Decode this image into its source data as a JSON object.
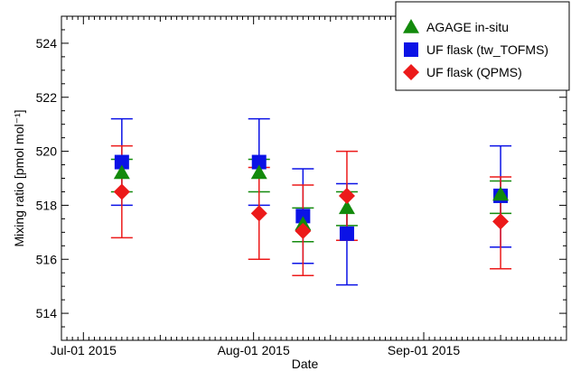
{
  "chart_data": {
    "type": "scatter",
    "xlabel": "Date",
    "ylabel": "Mixing ratio [pmol mol⁻¹]",
    "ylim": [
      513,
      525
    ],
    "xlim": [
      "2015-06-27",
      "2015-09-27"
    ],
    "x_major_ticks": [
      "2015-07-01",
      "2015-08-01",
      "2015-09-01"
    ],
    "x_tick_labels": [
      "Jul-01 2015",
      "Aug-01 2015",
      "Sep-01 2015"
    ],
    "y_ticks": [
      514,
      516,
      518,
      520,
      522,
      524
    ],
    "y_tick_labels": [
      "514",
      "516",
      "518",
      "520",
      "522",
      "524"
    ],
    "grid": false,
    "legend_position": "top-right",
    "series": [
      {
        "name": "AGAGE in-situ",
        "marker": "triangle",
        "color": "#138a0c",
        "points": [
          {
            "x": "2015-07-08",
            "y": 519.2,
            "ylo": 518.5,
            "yhi": 519.7
          },
          {
            "x": "2015-08-02",
            "y": 519.2,
            "ylo": 518.5,
            "yhi": 519.7
          },
          {
            "x": "2015-08-10",
            "y": 517.3,
            "ylo": 516.65,
            "yhi": 517.9
          },
          {
            "x": "2015-08-18",
            "y": 517.9,
            "ylo": 517.25,
            "yhi": 518.5
          },
          {
            "x": "2015-09-15",
            "y": 518.4,
            "ylo": 517.7,
            "yhi": 518.9
          }
        ]
      },
      {
        "name": "UF flask (tw_TOFMS)",
        "marker": "square",
        "color": "#0b12e6",
        "points": [
          {
            "x": "2015-07-08",
            "y": 519.6,
            "ylo": 518.0,
            "yhi": 521.2
          },
          {
            "x": "2015-08-02",
            "y": 519.6,
            "ylo": 518.0,
            "yhi": 521.2
          },
          {
            "x": "2015-08-10",
            "y": 517.6,
            "ylo": 515.85,
            "yhi": 519.35
          },
          {
            "x": "2015-08-18",
            "y": 516.95,
            "ylo": 515.05,
            "yhi": 518.8
          },
          {
            "x": "2015-09-15",
            "y": 518.35,
            "ylo": 516.45,
            "yhi": 520.2
          }
        ]
      },
      {
        "name": "UF flask (QPMS)",
        "marker": "diamond",
        "color": "#ec1a1a",
        "points": [
          {
            "x": "2015-07-08",
            "y": 518.5,
            "ylo": 516.8,
            "yhi": 520.2
          },
          {
            "x": "2015-08-02",
            "y": 517.7,
            "ylo": 516.0,
            "yhi": 519.4
          },
          {
            "x": "2015-08-10",
            "y": 517.05,
            "ylo": 515.4,
            "yhi": 518.75
          },
          {
            "x": "2015-08-18",
            "y": 518.35,
            "ylo": 516.7,
            "yhi": 520.0
          },
          {
            "x": "2015-09-15",
            "y": 517.4,
            "ylo": 515.65,
            "yhi": 519.05
          }
        ]
      }
    ]
  }
}
